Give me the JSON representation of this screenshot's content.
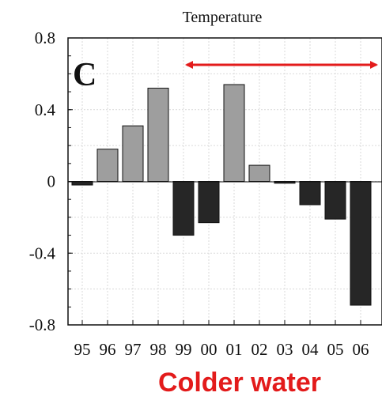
{
  "chart_data": {
    "type": "bar",
    "title": "Temperature",
    "panel_label": "C",
    "categories": [
      "95",
      "96",
      "97",
      "98",
      "99",
      "00",
      "01",
      "02",
      "03",
      "04",
      "05",
      "06"
    ],
    "values": [
      -0.02,
      0.18,
      0.31,
      0.52,
      -0.3,
      -0.23,
      0.54,
      0.09,
      -0.01,
      -0.13,
      -0.21,
      -0.69
    ],
    "yticks": [
      "0.8",
      "0.4",
      "0",
      "-0.4",
      "-0.8"
    ],
    "ylim": [
      -0.8,
      0.8
    ],
    "grid": true,
    "colors": {
      "positive": "#9e9e9e",
      "negative": "#262626",
      "arrow": "#e31b1b",
      "caption": "#e31b1b"
    }
  },
  "caption": "Colder water"
}
